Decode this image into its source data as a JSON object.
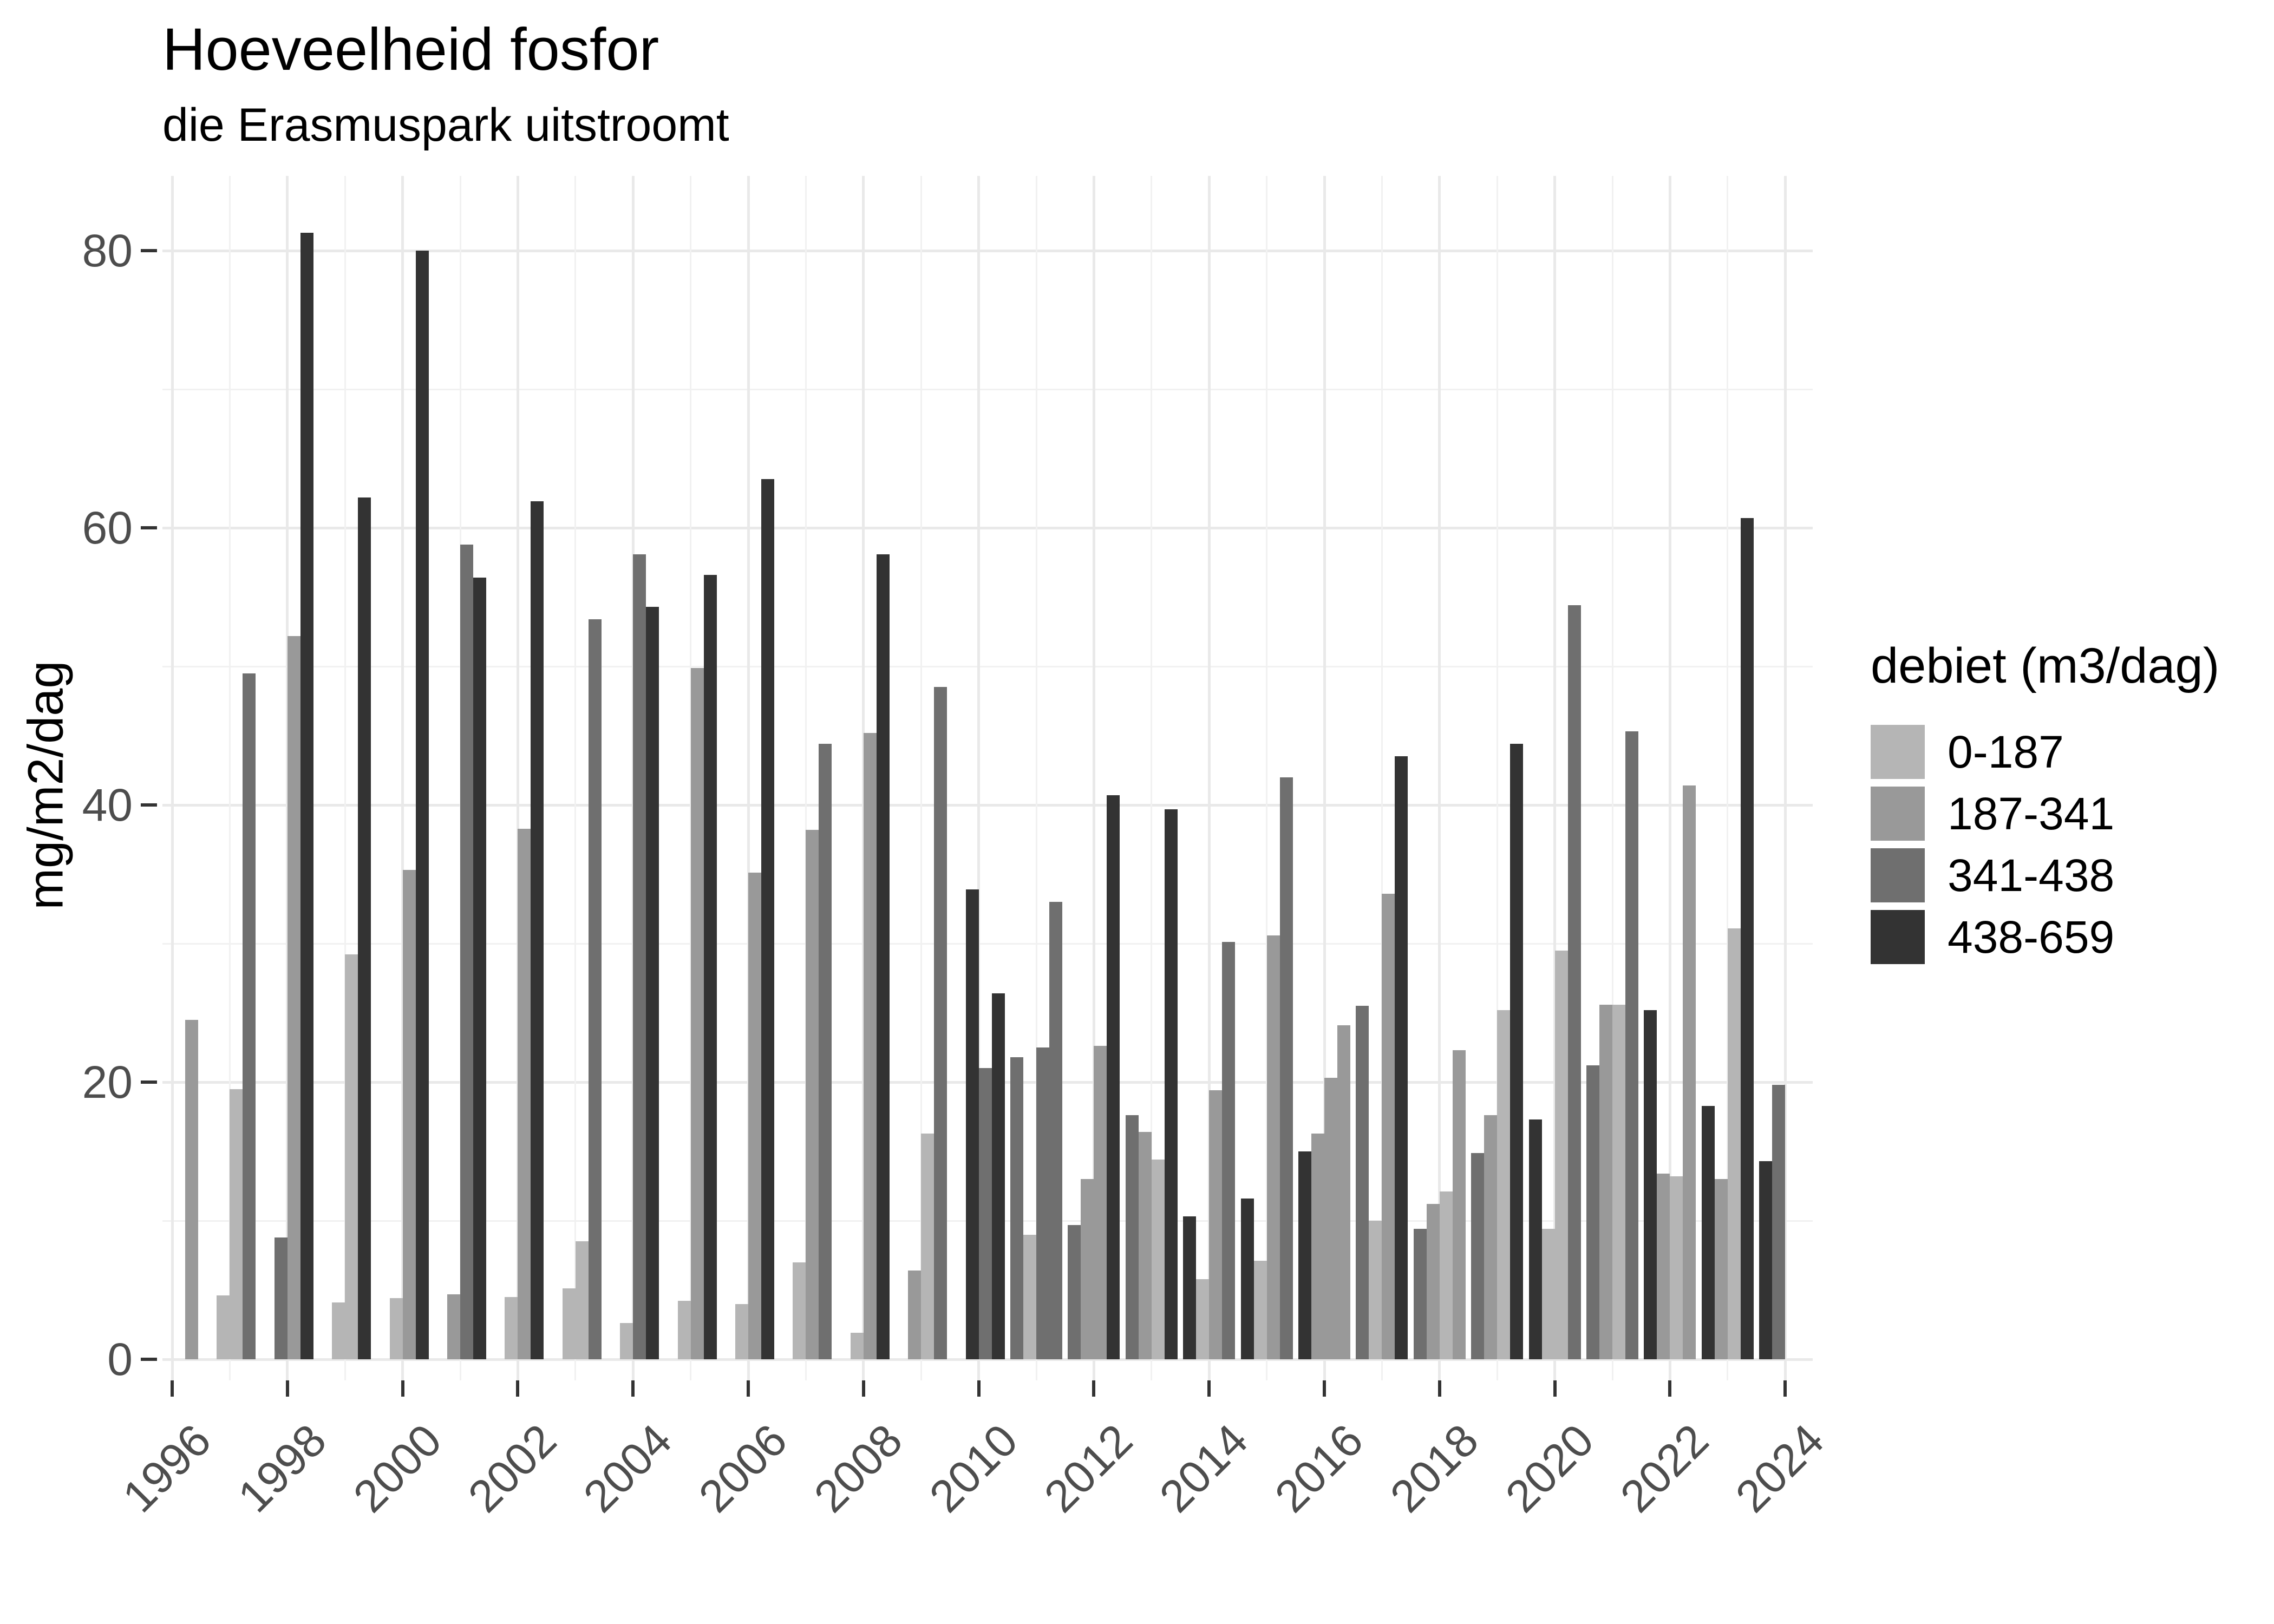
{
  "title": "Hoeveelheid fosfor",
  "subtitle": "die Erasmuspark uitstroomt",
  "y_axis": {
    "label": "mg/m2/dag"
  },
  "legend": {
    "title": "debiet (m3/dag)"
  },
  "chart_data": {
    "type": "bar",
    "title": "Hoeveelheid fosfor",
    "subtitle": "die Erasmuspark uitstroomt",
    "xlabel": "",
    "ylabel": "mg/m2/dag",
    "ylim": [
      0,
      85
    ],
    "x_range": [
      1996,
      2024
    ],
    "x_major_ticks": [
      1996,
      1998,
      2000,
      2002,
      2004,
      2006,
      2008,
      2010,
      2012,
      2014,
      2016,
      2018,
      2020,
      2022,
      2024
    ],
    "y_major_ticks": [
      0,
      20,
      40,
      60,
      80
    ],
    "y_minor_ticks": [
      10,
      30,
      50,
      70
    ],
    "grid": true,
    "legend_position": "right",
    "legend_title": "debiet (m3/dag)",
    "categories": [
      {
        "label": "0-187",
        "color": "#b5b5b5"
      },
      {
        "label": "187-341",
        "color": "#999999"
      },
      {
        "label": "341-438",
        "color": "#6f6f6f"
      },
      {
        "label": "438-659",
        "color": "#333333"
      }
    ],
    "bars": [
      {
        "year": 1996,
        "slot": 3,
        "debiet": "187-341",
        "value": 24.5
      },
      {
        "year": 1997,
        "slot": 1,
        "debiet": "0-187",
        "value": 4.6
      },
      {
        "year": 1997,
        "slot": 2,
        "debiet": "0-187",
        "value": 19.5
      },
      {
        "year": 1997,
        "slot": 3,
        "debiet": "341-438",
        "value": 49.5
      },
      {
        "year": 1998,
        "slot": 1,
        "debiet": "341-438",
        "value": 8.8
      },
      {
        "year": 1998,
        "slot": 2,
        "debiet": "187-341",
        "value": 52.2
      },
      {
        "year": 1998,
        "slot": 3,
        "debiet": "438-659",
        "value": 81.3
      },
      {
        "year": 1999,
        "slot": 1,
        "debiet": "0-187",
        "value": 4.1
      },
      {
        "year": 1999,
        "slot": 2,
        "debiet": "0-187",
        "value": 29.2
      },
      {
        "year": 1999,
        "slot": 3,
        "debiet": "438-659",
        "value": 62.2
      },
      {
        "year": 2000,
        "slot": 1,
        "debiet": "0-187",
        "value": 4.4
      },
      {
        "year": 2000,
        "slot": 2,
        "debiet": "187-341",
        "value": 35.3
      },
      {
        "year": 2000,
        "slot": 3,
        "debiet": "438-659",
        "value": 80.0
      },
      {
        "year": 2001,
        "slot": 1,
        "debiet": "187-341",
        "value": 4.7
      },
      {
        "year": 2001,
        "slot": 2,
        "debiet": "341-438",
        "value": 58.8
      },
      {
        "year": 2001,
        "slot": 3,
        "debiet": "438-659",
        "value": 56.4
      },
      {
        "year": 2002,
        "slot": 1,
        "debiet": "0-187",
        "value": 4.5
      },
      {
        "year": 2002,
        "slot": 2,
        "debiet": "187-341",
        "value": 38.3
      },
      {
        "year": 2002,
        "slot": 3,
        "debiet": "438-659",
        "value": 61.9
      },
      {
        "year": 2003,
        "slot": 1,
        "debiet": "0-187",
        "value": 5.1
      },
      {
        "year": 2003,
        "slot": 2,
        "debiet": "0-187",
        "value": 8.5
      },
      {
        "year": 2003,
        "slot": 3,
        "debiet": "341-438",
        "value": 53.4
      },
      {
        "year": 2004,
        "slot": 1,
        "debiet": "0-187",
        "value": 2.6
      },
      {
        "year": 2004,
        "slot": 2,
        "debiet": "341-438",
        "value": 58.1
      },
      {
        "year": 2004,
        "slot": 3,
        "debiet": "438-659",
        "value": 54.3
      },
      {
        "year": 2005,
        "slot": 1,
        "debiet": "0-187",
        "value": 4.2
      },
      {
        "year": 2005,
        "slot": 2,
        "debiet": "187-341",
        "value": 49.9
      },
      {
        "year": 2005,
        "slot": 3,
        "debiet": "438-659",
        "value": 56.6
      },
      {
        "year": 2006,
        "slot": 1,
        "debiet": "0-187",
        "value": 4.0
      },
      {
        "year": 2006,
        "slot": 2,
        "debiet": "187-341",
        "value": 35.1
      },
      {
        "year": 2006,
        "slot": 3,
        "debiet": "438-659",
        "value": 63.5
      },
      {
        "year": 2007,
        "slot": 1,
        "debiet": "0-187",
        "value": 7.0
      },
      {
        "year": 2007,
        "slot": 2,
        "debiet": "187-341",
        "value": 38.2
      },
      {
        "year": 2007,
        "slot": 3,
        "debiet": "341-438",
        "value": 44.4
      },
      {
        "year": 2008,
        "slot": 1,
        "debiet": "0-187",
        "value": 1.9
      },
      {
        "year": 2008,
        "slot": 2,
        "debiet": "187-341",
        "value": 45.2
      },
      {
        "year": 2008,
        "slot": 3,
        "debiet": "438-659",
        "value": 58.1
      },
      {
        "year": 2009,
        "slot": 1,
        "debiet": "187-341",
        "value": 6.4
      },
      {
        "year": 2009,
        "slot": 2,
        "debiet": "0-187",
        "value": 16.3
      },
      {
        "year": 2009,
        "slot": 3,
        "debiet": "341-438",
        "value": 48.5
      },
      {
        "year": 2010,
        "slot": 1,
        "debiet": "438-659",
        "value": 33.9
      },
      {
        "year": 2010,
        "slot": 2,
        "debiet": "341-438",
        "value": 21.0
      },
      {
        "year": 2010,
        "slot": 3,
        "debiet": "438-659",
        "value": 26.4
      },
      {
        "year": 2011,
        "slot": 0,
        "debiet": "341-438",
        "value": 21.8
      },
      {
        "year": 2011,
        "slot": 1,
        "debiet": "0-187",
        "value": 9.0
      },
      {
        "year": 2011,
        "slot": 2,
        "debiet": "341-438",
        "value": 22.5
      },
      {
        "year": 2011,
        "slot": 3,
        "debiet": "341-438",
        "value": 33.0
      },
      {
        "year": 2012,
        "slot": 0,
        "debiet": "341-438",
        "value": 9.7
      },
      {
        "year": 2012,
        "slot": 1,
        "debiet": "187-341",
        "value": 13.0
      },
      {
        "year": 2012,
        "slot": 2,
        "debiet": "187-341",
        "value": 22.6
      },
      {
        "year": 2012,
        "slot": 3,
        "debiet": "438-659",
        "value": 40.7
      },
      {
        "year": 2013,
        "slot": 0,
        "debiet": "341-438",
        "value": 17.6
      },
      {
        "year": 2013,
        "slot": 1,
        "debiet": "187-341",
        "value": 16.4
      },
      {
        "year": 2013,
        "slot": 2,
        "debiet": "0-187",
        "value": 14.4
      },
      {
        "year": 2013,
        "slot": 3,
        "debiet": "438-659",
        "value": 39.7
      },
      {
        "year": 2014,
        "slot": 0,
        "debiet": "438-659",
        "value": 10.3
      },
      {
        "year": 2014,
        "slot": 1,
        "debiet": "0-187",
        "value": 5.8
      },
      {
        "year": 2014,
        "slot": 2,
        "debiet": "187-341",
        "value": 19.4
      },
      {
        "year": 2014,
        "slot": 3,
        "debiet": "341-438",
        "value": 30.1
      },
      {
        "year": 2015,
        "slot": 0,
        "debiet": "438-659",
        "value": 11.6
      },
      {
        "year": 2015,
        "slot": 1,
        "debiet": "0-187",
        "value": 7.1
      },
      {
        "year": 2015,
        "slot": 2,
        "debiet": "187-341",
        "value": 30.6
      },
      {
        "year": 2015,
        "slot": 3,
        "debiet": "341-438",
        "value": 42.0
      },
      {
        "year": 2016,
        "slot": 0,
        "debiet": "438-659",
        "value": 15.0
      },
      {
        "year": 2016,
        "slot": 1,
        "debiet": "187-341",
        "value": 16.3
      },
      {
        "year": 2016,
        "slot": 2,
        "debiet": "187-341",
        "value": 20.3
      },
      {
        "year": 2016,
        "slot": 3,
        "debiet": "187-341",
        "value": 24.1
      },
      {
        "year": 2017,
        "slot": 0,
        "debiet": "341-438",
        "value": 25.5
      },
      {
        "year": 2017,
        "slot": 1,
        "debiet": "0-187",
        "value": 10.0
      },
      {
        "year": 2017,
        "slot": 2,
        "debiet": "187-341",
        "value": 33.6
      },
      {
        "year": 2017,
        "slot": 3,
        "debiet": "438-659",
        "value": 43.5
      },
      {
        "year": 2018,
        "slot": 0,
        "debiet": "341-438",
        "value": 9.4
      },
      {
        "year": 2018,
        "slot": 1,
        "debiet": "187-341",
        "value": 11.2
      },
      {
        "year": 2018,
        "slot": 2,
        "debiet": "0-187",
        "value": 12.1
      },
      {
        "year": 2018,
        "slot": 3,
        "debiet": "187-341",
        "value": 22.3
      },
      {
        "year": 2019,
        "slot": 0,
        "debiet": "341-438",
        "value": 14.9
      },
      {
        "year": 2019,
        "slot": 1,
        "debiet": "187-341",
        "value": 17.6
      },
      {
        "year": 2019,
        "slot": 2,
        "debiet": "0-187",
        "value": 25.2
      },
      {
        "year": 2019,
        "slot": 3,
        "debiet": "438-659",
        "value": 44.4
      },
      {
        "year": 2020,
        "slot": 0,
        "debiet": "438-659",
        "value": 17.3
      },
      {
        "year": 2020,
        "slot": 1,
        "debiet": "0-187",
        "value": 9.4
      },
      {
        "year": 2020,
        "slot": 2,
        "debiet": "0-187",
        "value": 29.5
      },
      {
        "year": 2020,
        "slot": 3,
        "debiet": "341-438",
        "value": 54.4
      },
      {
        "year": 2021,
        "slot": 0,
        "debiet": "341-438",
        "value": 21.2
      },
      {
        "year": 2021,
        "slot": 1,
        "debiet": "187-341",
        "value": 25.6
      },
      {
        "year": 2021,
        "slot": 2,
        "debiet": "0-187",
        "value": 25.6
      },
      {
        "year": 2021,
        "slot": 3,
        "debiet": "341-438",
        "value": 45.3
      },
      {
        "year": 2022,
        "slot": 0,
        "debiet": "438-659",
        "value": 25.2
      },
      {
        "year": 2022,
        "slot": 1,
        "debiet": "187-341",
        "value": 13.4
      },
      {
        "year": 2022,
        "slot": 2,
        "debiet": "0-187",
        "value": 13.2
      },
      {
        "year": 2022,
        "slot": 3,
        "debiet": "187-341",
        "value": 41.4
      },
      {
        "year": 2023,
        "slot": 0,
        "debiet": "438-659",
        "value": 18.3
      },
      {
        "year": 2023,
        "slot": 1,
        "debiet": "187-341",
        "value": 13.0
      },
      {
        "year": 2023,
        "slot": 2,
        "debiet": "0-187",
        "value": 31.1
      },
      {
        "year": 2023,
        "slot": 3,
        "debiet": "438-659",
        "value": 60.7
      },
      {
        "year": 2024,
        "slot": 0,
        "debiet": "438-659",
        "value": 14.3
      },
      {
        "year": 2024,
        "slot": 1,
        "debiet": "341-438",
        "value": 19.8
      }
    ]
  }
}
